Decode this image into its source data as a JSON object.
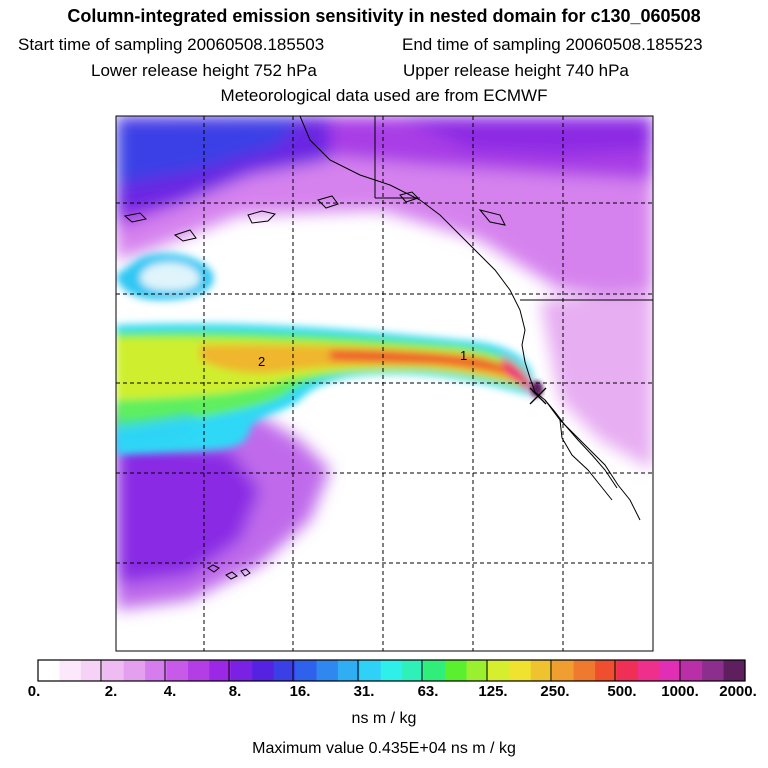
{
  "header": {
    "title": "Column-integrated emission sensitivity in nested domain for c130_060508",
    "start_label": "Start time of sampling 20060508.185503",
    "end_label": "End time of sampling 20060508.185523",
    "lower_label": "Lower release height  752 hPa",
    "upper_label": "Upper release height  740 hPa",
    "met_label": "Meteorological data used are from ECMWF"
  },
  "map": {
    "contour_labels": [
      "2",
      "1"
    ]
  },
  "legend": {
    "ticks": [
      "0.",
      "2.",
      "4.",
      "8.",
      "16.",
      "31.",
      "63.",
      "125.",
      "250.",
      "500.",
      "1000.",
      "2000."
    ],
    "colors": [
      "#ffffff",
      "#fbe8fb",
      "#f6d3f6",
      "#eebcf2",
      "#e2a0ef",
      "#d57ded",
      "#c85ae9",
      "#b33ee6",
      "#9b28e4",
      "#7a22e3",
      "#5522e2",
      "#3a3fe6",
      "#2f62ec",
      "#2f87f0",
      "#2faef3",
      "#2fd2f6",
      "#2fefeb",
      "#2ff0b8",
      "#2fef7a",
      "#5aef2f",
      "#9aef2f",
      "#d5ef2f",
      "#efe32f",
      "#efc22f",
      "#ef9e2f",
      "#ef7a2f",
      "#ef4f2f",
      "#ef2f55",
      "#ef2f8c",
      "#e02fb4",
      "#b92fa8",
      "#8c2f8c",
      "#5e1f5e"
    ],
    "units": "ns m / kg",
    "max_value": "Maximum value  0.435E+04 ns m / kg"
  }
}
